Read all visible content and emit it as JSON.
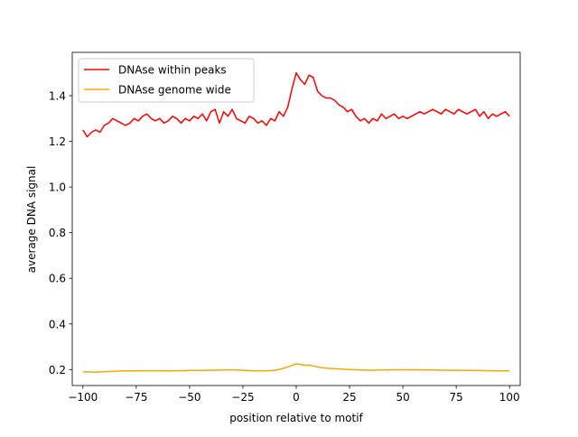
{
  "chart_data": {
    "type": "line",
    "title": "",
    "xlabel": "position relative to motif",
    "ylabel": "average DNA signal",
    "xlim": [
      -105,
      105
    ],
    "ylim": [
      0.13,
      1.59
    ],
    "xticks": [
      -100,
      -75,
      -50,
      -25,
      0,
      25,
      50,
      75,
      100
    ],
    "xtick_labels": [
      "−100",
      "−75",
      "−50",
      "−25",
      "0",
      "25",
      "50",
      "75",
      "100"
    ],
    "yticks": [
      0.2,
      0.4,
      0.6,
      0.8,
      1.0,
      1.2,
      1.4
    ],
    "ytick_labels": [
      "0.2",
      "0.4",
      "0.6",
      "0.8",
      "1.0",
      "1.2",
      "1.4"
    ],
    "grid": false,
    "legend_position": "top-left",
    "series": [
      {
        "name": "DNAse within peaks",
        "color": "#ff0000",
        "x": [
          -100,
          -98,
          -96,
          -94,
          -92,
          -90,
          -88,
          -86,
          -84,
          -82,
          -80,
          -78,
          -76,
          -74,
          -72,
          -70,
          -68,
          -66,
          -64,
          -62,
          -60,
          -58,
          -56,
          -54,
          -52,
          -50,
          -48,
          -46,
          -44,
          -42,
          -40,
          -38,
          -36,
          -34,
          -32,
          -30,
          -28,
          -26,
          -24,
          -22,
          -20,
          -18,
          -16,
          -14,
          -12,
          -10,
          -8,
          -6,
          -4,
          -2,
          0,
          2,
          4,
          6,
          8,
          10,
          12,
          14,
          16,
          18,
          20,
          22,
          24,
          26,
          28,
          30,
          32,
          34,
          36,
          38,
          40,
          42,
          44,
          46,
          48,
          50,
          52,
          54,
          56,
          58,
          60,
          62,
          64,
          66,
          68,
          70,
          72,
          74,
          76,
          78,
          80,
          82,
          84,
          86,
          88,
          90,
          92,
          94,
          96,
          98,
          100
        ],
        "values": [
          1.25,
          1.22,
          1.24,
          1.25,
          1.24,
          1.27,
          1.28,
          1.3,
          1.29,
          1.28,
          1.27,
          1.28,
          1.3,
          1.29,
          1.31,
          1.32,
          1.3,
          1.29,
          1.3,
          1.28,
          1.29,
          1.31,
          1.3,
          1.28,
          1.3,
          1.29,
          1.31,
          1.3,
          1.32,
          1.29,
          1.33,
          1.34,
          1.28,
          1.33,
          1.31,
          1.34,
          1.3,
          1.29,
          1.28,
          1.31,
          1.3,
          1.28,
          1.29,
          1.27,
          1.3,
          1.29,
          1.33,
          1.31,
          1.35,
          1.43,
          1.5,
          1.47,
          1.45,
          1.49,
          1.48,
          1.42,
          1.4,
          1.39,
          1.39,
          1.38,
          1.36,
          1.35,
          1.33,
          1.34,
          1.31,
          1.29,
          1.3,
          1.28,
          1.3,
          1.29,
          1.32,
          1.3,
          1.31,
          1.32,
          1.3,
          1.31,
          1.3,
          1.31,
          1.32,
          1.33,
          1.32,
          1.33,
          1.34,
          1.33,
          1.32,
          1.34,
          1.33,
          1.32,
          1.34,
          1.33,
          1.32,
          1.33,
          1.34,
          1.31,
          1.33,
          1.3,
          1.32,
          1.31,
          1.32,
          1.33,
          1.31
        ]
      },
      {
        "name": "DNAse genome wide",
        "color": "#ffa500",
        "x": [
          -100,
          -95,
          -90,
          -85,
          -80,
          -75,
          -70,
          -65,
          -60,
          -55,
          -50,
          -45,
          -40,
          -35,
          -30,
          -25,
          -20,
          -15,
          -10,
          -8,
          -6,
          -4,
          -2,
          0,
          2,
          4,
          6,
          8,
          10,
          12,
          15,
          20,
          25,
          30,
          35,
          40,
          45,
          50,
          55,
          60,
          65,
          70,
          75,
          80,
          85,
          90,
          95,
          100
        ],
        "values": [
          0.19,
          0.189,
          0.19,
          0.193,
          0.194,
          0.194,
          0.195,
          0.195,
          0.194,
          0.195,
          0.196,
          0.196,
          0.197,
          0.198,
          0.199,
          0.197,
          0.195,
          0.194,
          0.197,
          0.2,
          0.205,
          0.212,
          0.218,
          0.225,
          0.222,
          0.219,
          0.22,
          0.216,
          0.212,
          0.208,
          0.205,
          0.203,
          0.2,
          0.198,
          0.197,
          0.198,
          0.199,
          0.199,
          0.199,
          0.198,
          0.198,
          0.197,
          0.197,
          0.196,
          0.196,
          0.195,
          0.194,
          0.194
        ]
      }
    ]
  }
}
